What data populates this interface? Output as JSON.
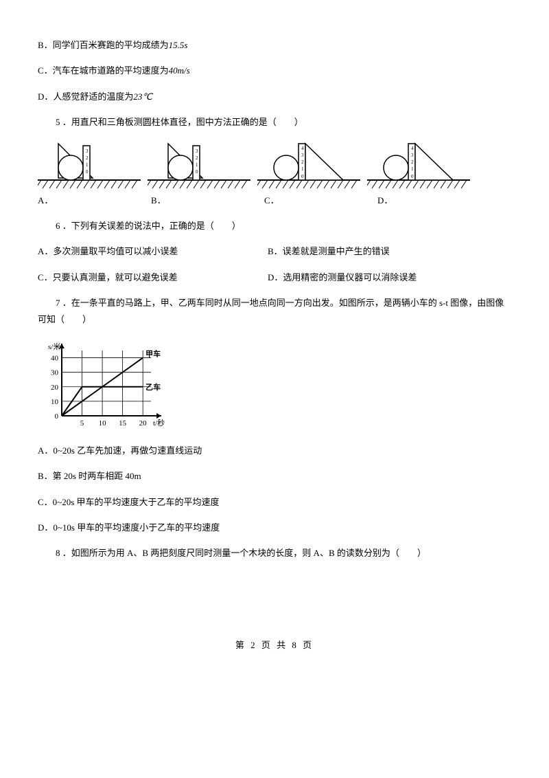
{
  "q_continued": {
    "B": {
      "prefix": "B．同学们百米赛跑的平均成绩为",
      "value": "15.5s"
    },
    "C": {
      "prefix": "C．汽车在城市道路的平均速度为",
      "value": "40m/s"
    },
    "D": {
      "prefix": "D．人感觉舒适的温度为",
      "value": "23℃"
    }
  },
  "q5": {
    "text": "5 ．用直尺和三角板测圆柱体直径，图中方法正确的是（　　）",
    "tick_labels": [
      "3",
      "2",
      "1",
      "0"
    ],
    "options": {
      "A": "A．",
      "B": "B．",
      "C": "C．",
      "D": "D．"
    },
    "style": {
      "stroke": "#000000",
      "fill_white": "#ffffff",
      "hatching_spacing": 8,
      "circle_radius": 18
    }
  },
  "q6": {
    "text": "6 ．下列有关误差的说法中，正确的是（　　）",
    "A": "A．多次测量取平均值可以减小误差",
    "B": "B．误差就是测量中产生的错误",
    "C": "C．只要认真测量，就可以避免误差",
    "D": "D．选用精密的测量仪器可以消除误差"
  },
  "q7": {
    "text": "7 ．在一条平直的马路上，甲、乙两车同时从同一地点向同一方向出发。如图所示，是两辆小车的 s-t 图像，由图像可知（　　）",
    "graph": {
      "type": "line",
      "ylabel": "s/米",
      "xlabel": "t/秒",
      "xlim": [
        0,
        22
      ],
      "ylim": [
        0,
        45
      ],
      "xticks": [
        5,
        10,
        15,
        20
      ],
      "yticks": [
        0,
        10,
        20,
        30,
        40
      ],
      "series": [
        {
          "name": "甲车",
          "points": [
            [
              0,
              0
            ],
            [
              20,
              40
            ]
          ],
          "color": "#000000",
          "width": 2
        },
        {
          "name": "乙车",
          "points": [
            [
              0,
              0
            ],
            [
              5,
              20
            ],
            [
              20,
              20
            ]
          ],
          "color": "#000000",
          "width": 2
        }
      ],
      "grid_color": "#000000",
      "background": "#ffffff",
      "font_size": 11
    },
    "A": "A．0~20s 乙车先加速，再做匀速直线运动",
    "B": "B．第 20s 时两车相距 40m",
    "C": "C．0~20s 甲车的平均速度大于乙车的平均速度",
    "D": "D．0~10s 甲车的平均速度小于乙车的平均速度"
  },
  "q8": {
    "text": "8 ．如图所示为用 A、B 两把刻度尺同时测量一个木块的长度，则 A、B 的读数分别为（　　）"
  },
  "footer": "第 2 页 共 8 页"
}
